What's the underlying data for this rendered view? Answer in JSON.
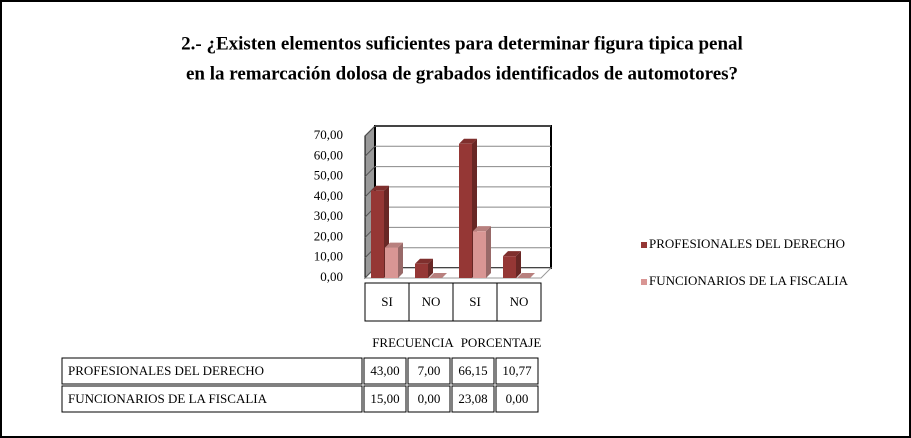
{
  "chart_data": {
    "type": "bar3d",
    "title_lines": [
      "2.- ¿Existen elementos suficientes para determinar figura tipica penal",
      "en la remarcación dolosa de grabados identificados de automotores?"
    ],
    "categories": [
      "SI",
      "NO",
      "SI",
      "NO"
    ],
    "group_labels": [
      "FRECUENCIA",
      "PORCENTAJE"
    ],
    "series": [
      {
        "name": "PROFESIONALES DEL DERECHO",
        "color": "#953735",
        "values": [
          43,
          7,
          66.15,
          10.77
        ],
        "value_labels": [
          "43,00",
          "7,00",
          "66,15",
          "10,77"
        ]
      },
      {
        "name": "FUNCIONARIOS DE LA FISCALIA",
        "color": "#d99694",
        "values": [
          15,
          0,
          23.08,
          0
        ],
        "value_labels": [
          "15,00",
          "0,00",
          "23,08",
          "0,00"
        ]
      }
    ],
    "ylim": [
      0,
      70
    ],
    "yticks": [
      {
        "value": 0,
        "label": "0,00"
      },
      {
        "value": 10,
        "label": "10,00"
      },
      {
        "value": 20,
        "label": "20,00"
      },
      {
        "value": 30,
        "label": "30,00"
      },
      {
        "value": 40,
        "label": "40,00"
      },
      {
        "value": 50,
        "label": "50,00"
      },
      {
        "value": 60,
        "label": "60,00"
      },
      {
        "value": 70,
        "label": "70,00"
      }
    ],
    "grid": true,
    "legend": "right"
  }
}
